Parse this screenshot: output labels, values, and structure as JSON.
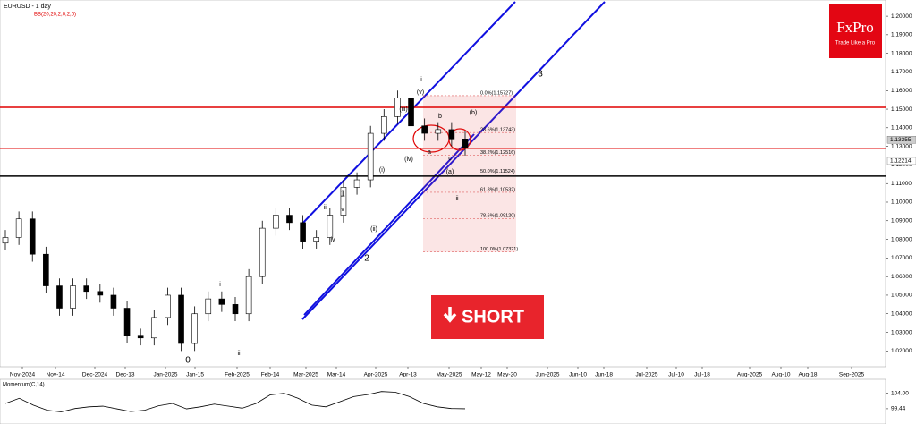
{
  "chart_data": {
    "type": "candlestick",
    "title": "EURUSD - 1 day",
    "subtitle": "BB(20,20,2,0,2,0)",
    "logo": "FxPro",
    "tagline": "Trade Like a Pro",
    "button": "SHORT",
    "up_color": "#ffffff",
    "down_color": "#000000",
    "categories": [
      null,
      null,
      null,
      null,
      null,
      null,
      null,
      null,
      null,
      null,
      null,
      null,
      null,
      null,
      null,
      null,
      null,
      null,
      null,
      null,
      null,
      null,
      null,
      null,
      null,
      null,
      null,
      null,
      null,
      null,
      null,
      null,
      null,
      null,
      null
    ],
    "open": [
      1.078,
      1.081,
      1.091,
      1.072,
      1.055,
      1.043,
      1.055,
      1.052,
      1.05,
      1.043,
      1.028,
      1.027,
      1.038,
      1.05,
      1.024,
      1.04,
      1.048,
      1.045,
      1.04,
      1.06,
      1.086,
      1.093,
      1.089,
      1.079,
      1.081,
      1.093,
      1.108,
      1.112,
      1.137,
      1.146,
      1.156,
      1.141,
      1.137,
      1.139,
      1.134
    ],
    "high": [
      1.085,
      1.095,
      1.095,
      1.076,
      1.059,
      1.059,
      1.059,
      1.056,
      1.054,
      1.047,
      1.032,
      1.042,
      1.054,
      1.054,
      1.044,
      1.052,
      1.052,
      1.049,
      1.064,
      1.09,
      1.097,
      1.097,
      1.093,
      1.085,
      1.097,
      1.112,
      1.116,
      1.141,
      1.15,
      1.16,
      1.16,
      1.145,
      1.143,
      1.143,
      1.138
    ],
    "low": [
      1.074,
      1.077,
      1.068,
      1.051,
      1.039,
      1.039,
      1.048,
      1.046,
      1.039,
      1.024,
      1.023,
      1.023,
      1.034,
      1.02,
      1.02,
      1.036,
      1.041,
      1.036,
      1.036,
      1.056,
      1.082,
      1.085,
      1.075,
      1.075,
      1.077,
      1.089,
      1.104,
      1.108,
      1.133,
      1.142,
      1.137,
      1.133,
      1.133,
      1.13,
      1.125
    ],
    "close": [
      1.081,
      1.091,
      1.072,
      1.055,
      1.043,
      1.055,
      1.052,
      1.05,
      1.043,
      1.028,
      1.027,
      1.038,
      1.05,
      1.024,
      1.04,
      1.048,
      1.045,
      1.04,
      1.06,
      1.086,
      1.093,
      1.089,
      1.079,
      1.081,
      1.093,
      1.108,
      1.112,
      1.137,
      1.146,
      1.156,
      1.141,
      1.137,
      1.139,
      1.134,
      1.129
    ],
    "ylim": [
      1.0115,
      1.2087
    ],
    "yticks": [
      {
        "value": 1.02,
        "label": "1.02000"
      },
      {
        "value": 1.03,
        "label": "1.03000"
      },
      {
        "value": 1.04,
        "label": "1.04000"
      },
      {
        "value": 1.05,
        "label": "1.05000"
      },
      {
        "value": 1.06,
        "label": "1.06000"
      },
      {
        "value": 1.07,
        "label": "1.07000"
      },
      {
        "value": 1.08,
        "label": "1.08000"
      },
      {
        "value": 1.09,
        "label": "1.09000"
      },
      {
        "value": 1.1,
        "label": "1.10000"
      },
      {
        "value": 1.11,
        "label": "1.11000"
      },
      {
        "value": 1.12,
        "label": "1.12000"
      },
      {
        "value": 1.13,
        "label": "1.13000"
      },
      {
        "value": 1.14,
        "label": "1.14000"
      },
      {
        "value": 1.15,
        "label": "1.15000"
      },
      {
        "value": 1.16,
        "label": "1.16000"
      },
      {
        "value": 1.17,
        "label": "1.17000"
      },
      {
        "value": 1.18,
        "label": "1.18000"
      },
      {
        "value": 1.19,
        "label": "1.19000"
      },
      {
        "value": 1.2,
        "label": "1.20000"
      }
    ],
    "price_labels": [
      {
        "value": 1.13355,
        "label": "1.13355"
      },
      {
        "value": 1.12214,
        "label": "1.12214"
      }
    ],
    "levels": [
      {
        "value": 1.151,
        "color": "#e00000"
      },
      {
        "value": 1.129,
        "color": "#e00000"
      },
      {
        "value": 1.114,
        "color": "#000000"
      }
    ],
    "fib": [
      {
        "value": 1.15727,
        "label": "0.0%(1.15727)"
      },
      {
        "value": 1.13743,
        "label": "23.6%(1.13743)"
      },
      {
        "value": 1.12516,
        "label": "38.2%(1.12516)"
      },
      {
        "value": 1.11524,
        "label": "50.0%(1.11524)"
      },
      {
        "value": 1.10532,
        "label": "61.8%(1.10532)"
      },
      {
        "value": 1.0912,
        "label": "78.6%(1.09120)"
      },
      {
        "value": 1.07321,
        "label": "100.0%(1.07321)"
      }
    ],
    "xlabels": [
      "Nov-2024",
      "Nov-14",
      "Dec-2024",
      "Dec-13",
      "Jan-2025",
      "Jan-15",
      "Feb-2025",
      "Feb-14",
      "Mar-2025",
      "Mar-14",
      "Apr-2025",
      "Apr-13",
      "May-2025",
      "May-12",
      "May-20",
      "Jun-2025",
      "Jun-10",
      "Jun-18",
      "Jul-2025",
      "Jul-10",
      "Jul-18",
      "Aug-2025",
      "Aug-10",
      "Aug-18",
      "Sep-2025"
    ],
    "annotations": [
      "0",
      "1",
      "2",
      "3",
      "i",
      "ii",
      "iii",
      "iv",
      "v",
      "(i)",
      "(ii)",
      "(iii)",
      "(iv)",
      "(v)",
      "a",
      "b",
      "c",
      "(a)",
      "(b)",
      "i",
      "ii"
    ],
    "momentum": {
      "title": "Momentum(C,14)",
      "ylim": [
        96,
        106
      ],
      "yticks": [
        {
          "value": 104,
          "label": "104.00"
        },
        {
          "value": 99.44,
          "label": "99.44"
        }
      ],
      "values": [
        101,
        102.5,
        100.5,
        99,
        98.5,
        99.5,
        100,
        100.2,
        99.4,
        98.6,
        99,
        100.3,
        101,
        99.4,
        100,
        100.8,
        100.2,
        99.6,
        101,
        103.5,
        104,
        102.5,
        100.5,
        100,
        101.5,
        103,
        103.6,
        104.5,
        104.3,
        103,
        101,
        100,
        99.5,
        99.44
      ]
    }
  }
}
